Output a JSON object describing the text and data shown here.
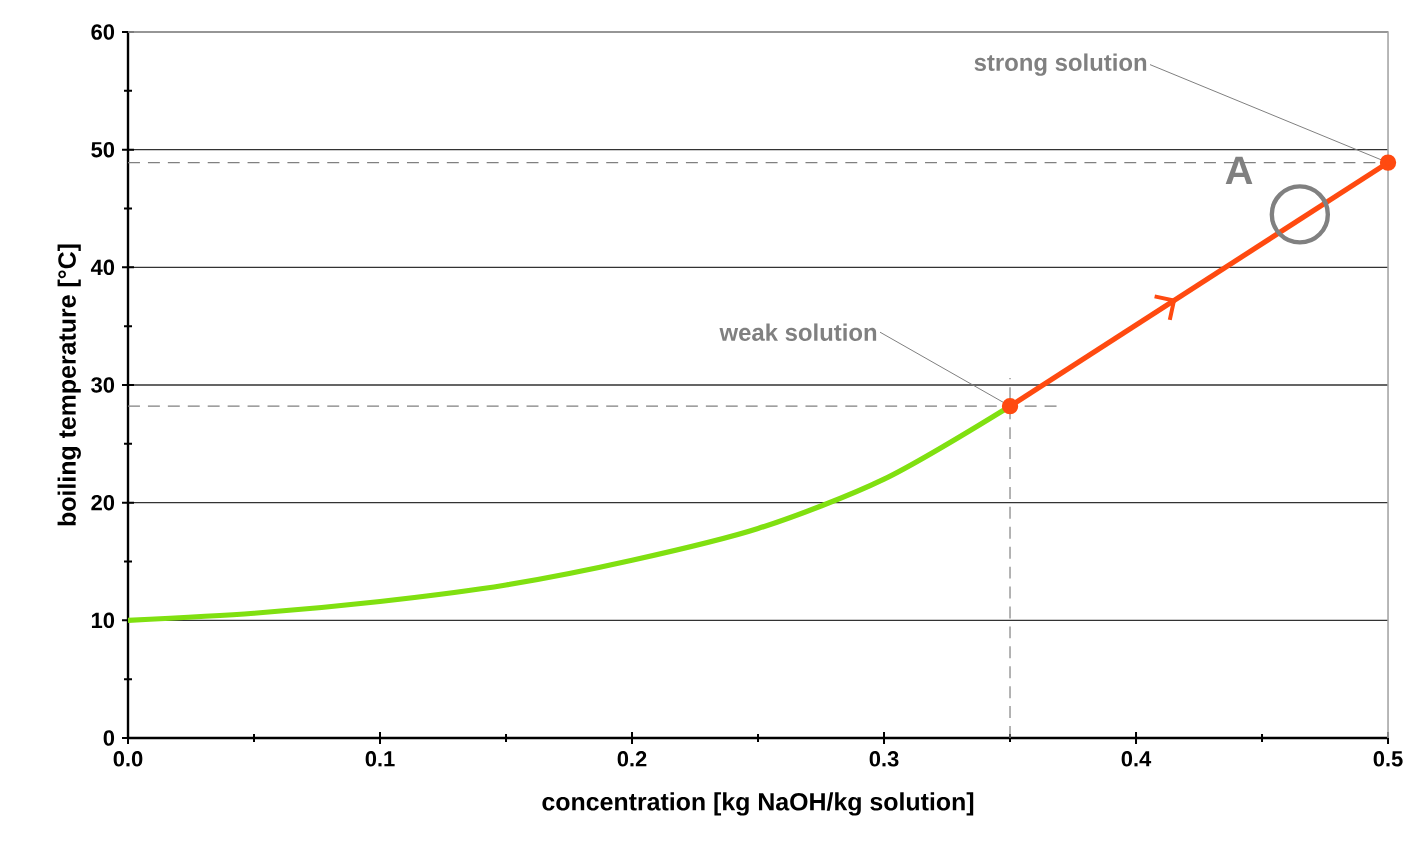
{
  "chart_data": {
    "type": "line",
    "xlabel": "concentration [kg NaOH/kg solution]",
    "ylabel": "boiling temperature [°C]",
    "x": [
      0,
      0.05,
      0.1,
      0.15,
      0.2,
      0.25,
      0.3,
      0.35
    ],
    "series": [
      {
        "color": "#80e010",
        "marker": "none",
        "values": [
          10,
          10.6,
          11.6,
          13.0,
          15.1,
          17.8,
          22.0,
          28.2
        ]
      },
      {
        "color": "#ff4a10",
        "marker": "circle",
        "x": [
          0.35,
          0.5
        ],
        "values": [
          28.2,
          48.9
        ]
      }
    ],
    "xlim": [
      0,
      0.5
    ],
    "ylim": [
      0,
      60
    ],
    "xticks": [
      {
        "value": 0,
        "label": "0.0"
      },
      {
        "value": 0.1,
        "label": "0.1"
      },
      {
        "value": 0.2,
        "label": "0.2"
      },
      {
        "value": 0.3,
        "label": "0.3"
      },
      {
        "value": 0.4,
        "label": "0.4"
      },
      {
        "value": 0.5,
        "label": "0.5"
      }
    ],
    "yticks": [
      0,
      10,
      20,
      30,
      40,
      50,
      60
    ],
    "grid": "y",
    "line_style": "solid",
    "ref_lines": [
      {
        "axis": "y",
        "value": 48.9,
        "color": "#808080",
        "line_style": "dashed"
      },
      {
        "axis": "y",
        "value": 28.2,
        "color": "#808080",
        "line_style": "dashed"
      },
      {
        "axis": "x",
        "value": 0.35,
        "color": "#808080",
        "line_style": "dashed"
      }
    ],
    "annotations": [
      {
        "text": "strong solution",
        "x": 0.5,
        "y": 48.9
      },
      {
        "text": "weak solution",
        "x": 0.35,
        "y": 28.2
      },
      {
        "text": "A",
        "x": 0.465,
        "y": 44.5
      }
    ]
  }
}
